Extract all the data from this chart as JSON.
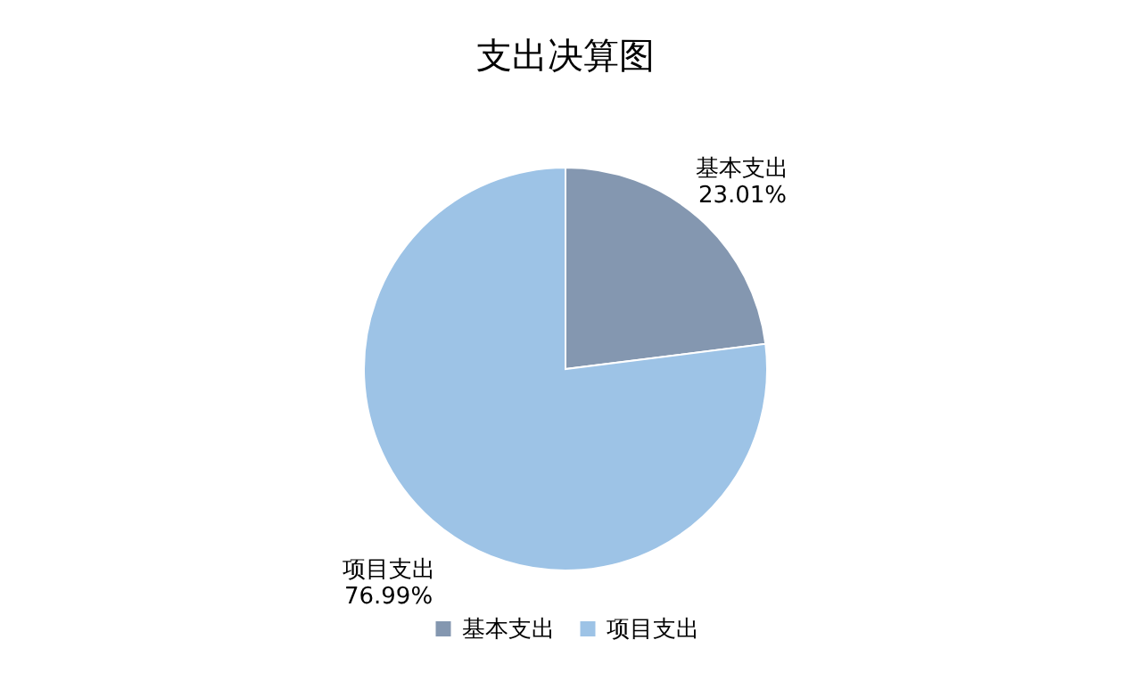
{
  "chart_data": {
    "type": "pie",
    "title": "支出决算图",
    "categories": [
      "基本支出",
      "项目支出"
    ],
    "values": [
      23.01,
      76.99
    ],
    "colors": [
      "#8497b0",
      "#9dc3e6"
    ],
    "value_labels": [
      "23.01%",
      "76.99%"
    ],
    "legend": "bottom"
  }
}
